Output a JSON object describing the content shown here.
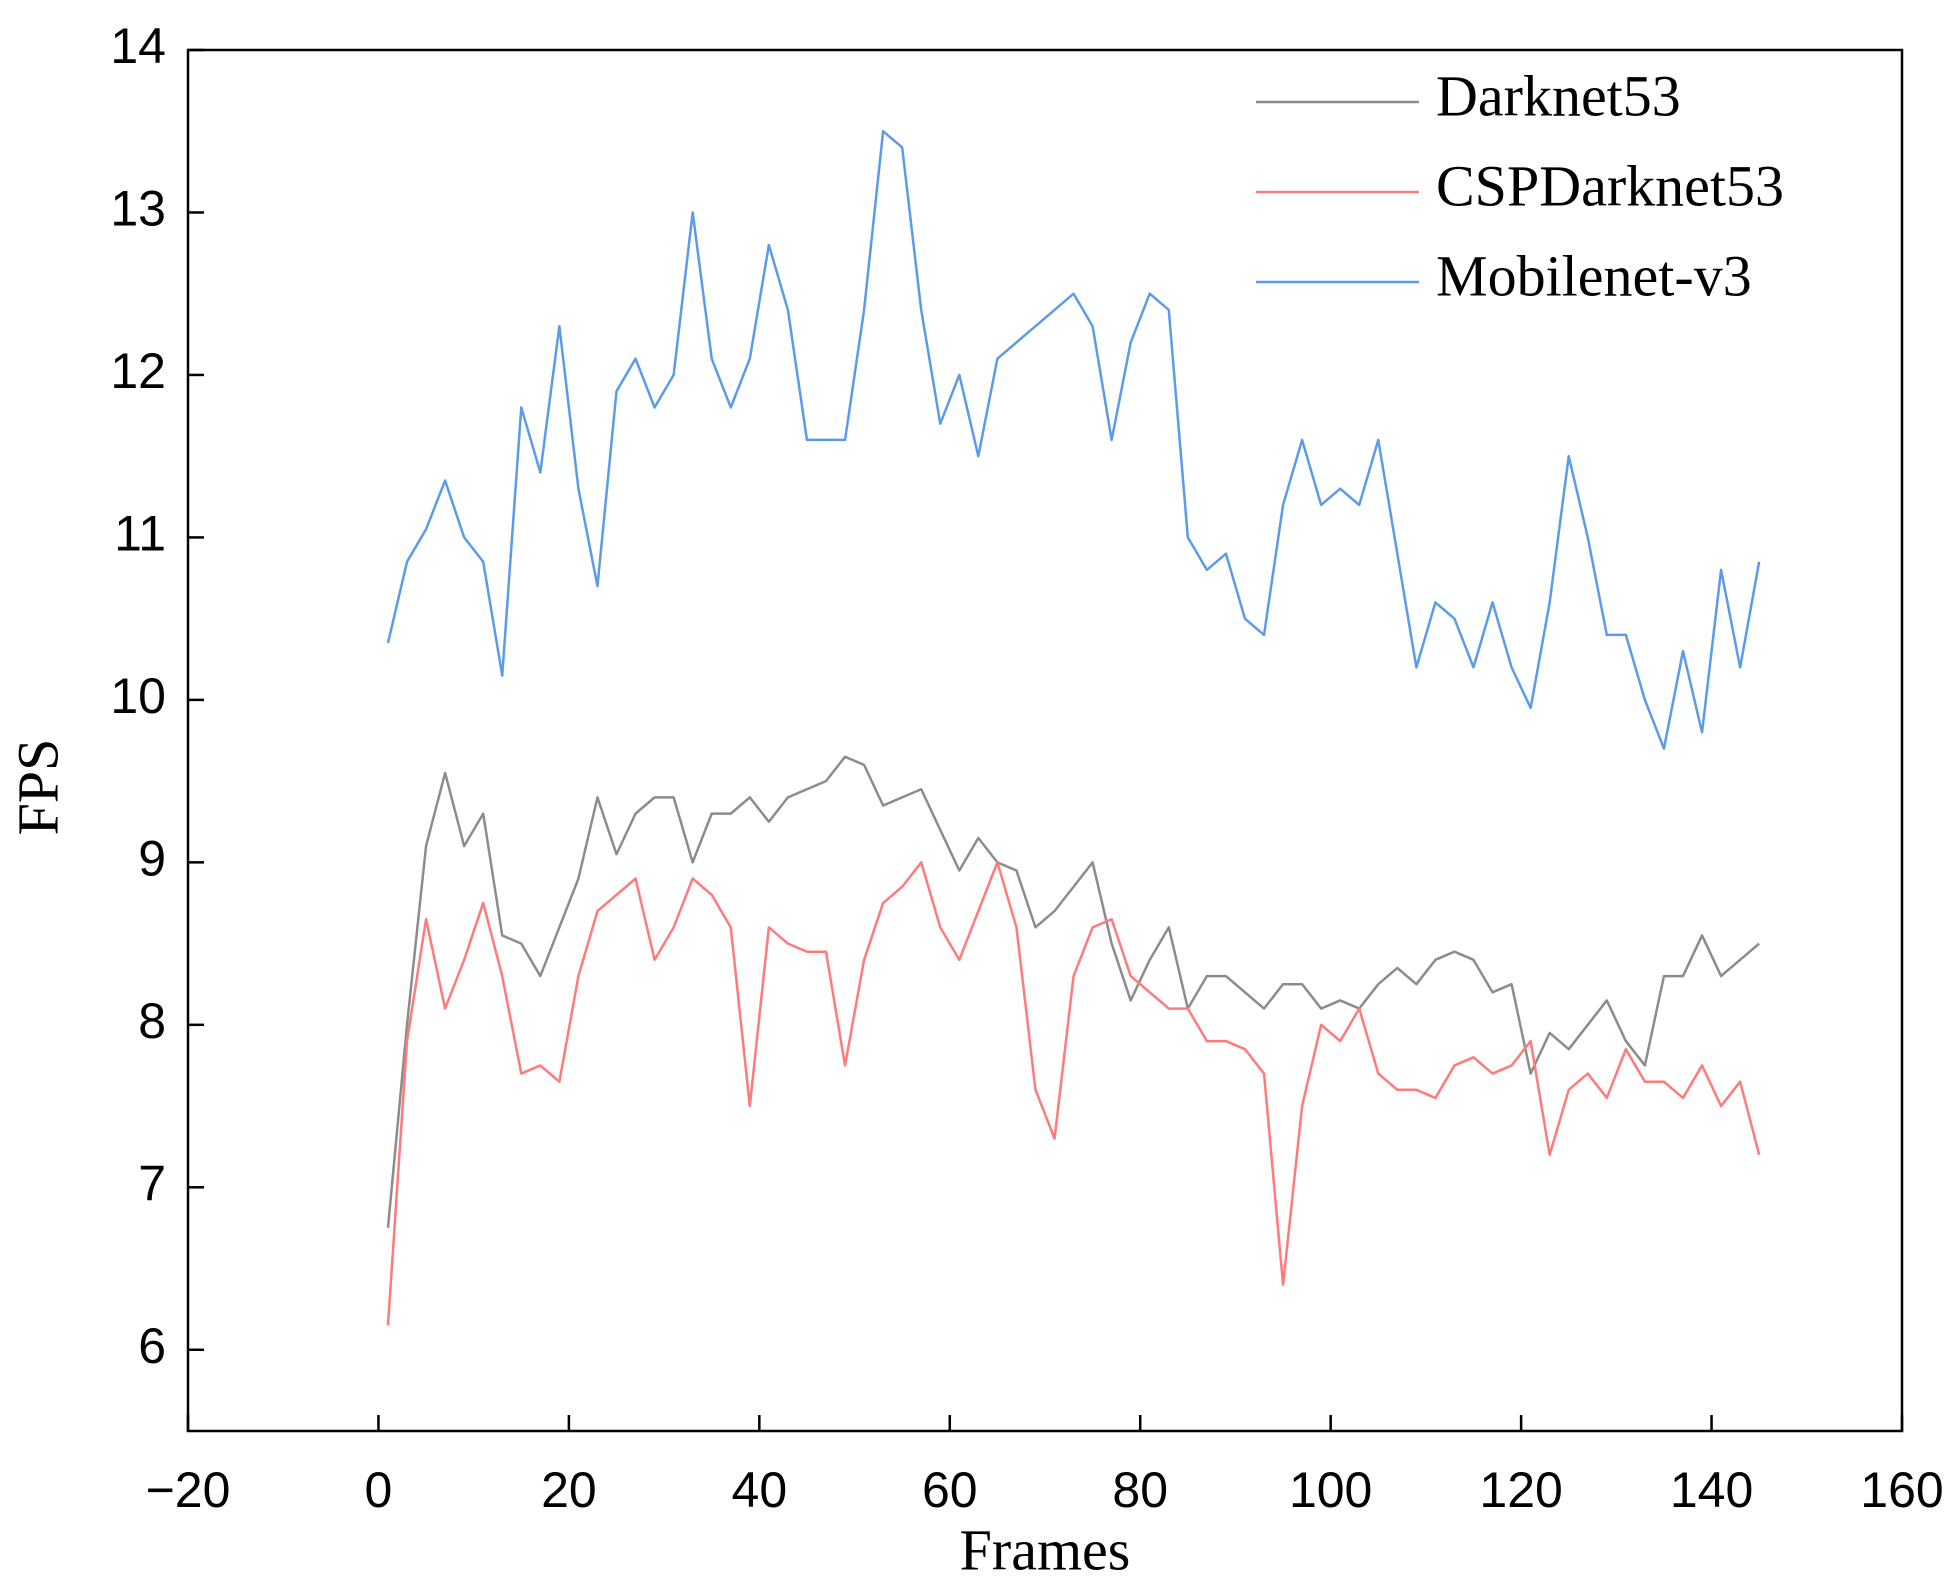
{
  "chart_data": {
    "type": "line",
    "x_label": "Frames",
    "y_label": "FPS",
    "x": [
      1,
      3,
      5,
      7,
      9,
      11,
      13,
      15,
      17,
      19,
      21,
      23,
      25,
      27,
      29,
      31,
      33,
      35,
      37,
      39,
      41,
      43,
      45,
      47,
      49,
      51,
      53,
      55,
      57,
      59,
      61,
      63,
      65,
      67,
      69,
      71,
      73,
      75,
      77,
      79,
      81,
      83,
      85,
      87,
      89,
      91,
      93,
      95,
      97,
      99,
      101,
      103,
      105,
      107,
      109,
      111,
      113,
      115,
      117,
      119,
      121,
      123,
      125,
      127,
      129,
      131,
      133,
      135,
      137,
      139,
      141,
      143,
      145
    ],
    "series": [
      {
        "name": "Darknet53",
        "color": "#8c8c8c",
        "values": [
          6.75,
          8.0,
          9.1,
          9.55,
          9.1,
          9.3,
          8.55,
          8.5,
          8.3,
          8.6,
          8.9,
          9.4,
          9.05,
          9.3,
          9.4,
          9.4,
          9.0,
          9.3,
          9.3,
          9.4,
          9.25,
          9.4,
          9.45,
          9.5,
          9.65,
          9.6,
          9.35,
          9.4,
          9.45,
          9.2,
          8.95,
          9.15,
          9.0,
          8.95,
          8.6,
          8.7,
          8.85,
          9.0,
          8.5,
          8.15,
          8.4,
          8.6,
          8.1,
          8.3,
          8.3,
          8.2,
          8.1,
          8.25,
          8.25,
          8.1,
          8.15,
          8.1,
          8.25,
          8.35,
          8.25,
          8.4,
          8.45,
          8.4,
          8.2,
          8.25,
          7.7,
          7.95,
          7.85,
          8.0,
          8.15,
          7.9,
          7.75,
          8.3,
          8.3,
          8.55,
          8.3,
          8.4,
          8.5
        ]
      },
      {
        "name": "CSPDarknet53",
        "color": "#ff7a7a",
        "values": [
          6.15,
          7.9,
          8.65,
          8.1,
          8.4,
          8.75,
          8.3,
          7.7,
          7.75,
          7.65,
          8.3,
          8.7,
          8.8,
          8.9,
          8.4,
          8.6,
          8.9,
          8.8,
          8.6,
          7.5,
          8.6,
          8.5,
          8.45,
          8.45,
          7.75,
          8.4,
          8.75,
          8.85,
          9.0,
          8.6,
          8.4,
          8.7,
          9.0,
          8.6,
          7.6,
          7.3,
          8.3,
          8.6,
          8.65,
          8.3,
          8.2,
          8.1,
          8.1,
          7.9,
          7.9,
          7.85,
          7.7,
          6.4,
          7.5,
          8.0,
          7.9,
          8.1,
          7.7,
          7.6,
          7.6,
          7.55,
          7.75,
          7.8,
          7.7,
          7.75,
          7.9,
          7.2,
          7.6,
          7.7,
          7.55,
          7.85,
          7.65,
          7.65,
          7.55,
          7.75,
          7.5,
          7.65,
          7.2
        ]
      },
      {
        "name": "Mobilenet-v3",
        "color": "#5b9bea",
        "values": [
          10.35,
          10.85,
          11.05,
          11.35,
          11.0,
          10.85,
          10.15,
          11.8,
          11.4,
          12.3,
          11.3,
          10.7,
          11.9,
          12.1,
          11.8,
          12.0,
          13.0,
          12.1,
          11.8,
          12.1,
          12.8,
          12.4,
          11.6,
          11.6,
          11.6,
          12.4,
          13.5,
          13.4,
          12.4,
          11.7,
          12.0,
          11.5,
          12.1,
          12.2,
          12.3,
          12.4,
          12.5,
          12.3,
          11.6,
          12.2,
          12.5,
          12.4,
          11.0,
          10.8,
          10.9,
          10.5,
          10.4,
          11.2,
          11.6,
          11.2,
          11.3,
          11.2,
          11.6,
          10.9,
          10.2,
          10.6,
          10.5,
          10.2,
          10.6,
          10.2,
          9.95,
          10.6,
          11.5,
          11.0,
          10.4,
          10.4,
          10.0,
          9.7,
          10.3,
          9.8,
          10.8,
          10.2,
          10.85
        ]
      }
    ],
    "xlim": [
      -20,
      160
    ],
    "xticks": [
      {
        "value": -20,
        "label": "−20"
      },
      0,
      20,
      40,
      60,
      80,
      100,
      120,
      140,
      160
    ],
    "ylim": [
      5.5,
      14
    ],
    "yticks": [
      6,
      7,
      8,
      9,
      10,
      11,
      12,
      13,
      14
    ],
    "legend": "top-right"
  }
}
